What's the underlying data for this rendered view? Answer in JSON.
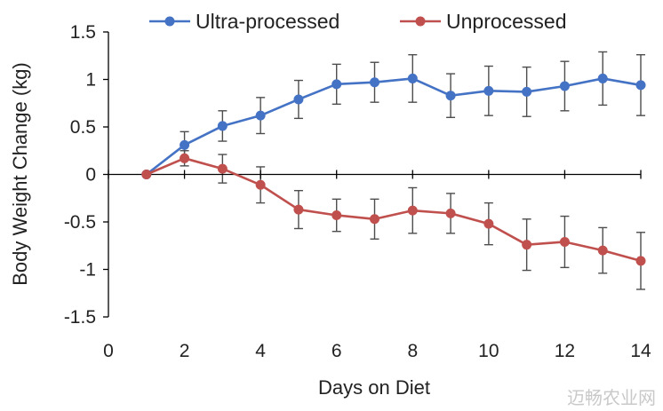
{
  "chart_data": {
    "type": "line",
    "title": "",
    "xlabel": "Days on Diet",
    "ylabel": "Body Weight Change (kg)",
    "xlim": [
      0,
      14
    ],
    "ylim": [
      -1.5,
      1.5
    ],
    "x_ticks": [
      0,
      2,
      4,
      6,
      8,
      10,
      12,
      14
    ],
    "y_ticks": [
      1.5,
      1,
      0.5,
      0,
      -0.5,
      -1,
      -1.5
    ],
    "x_tick_labels": [
      "0",
      "2",
      "4",
      "6",
      "8",
      "10",
      "12",
      "14"
    ],
    "y_tick_labels": [
      "1.5",
      "1",
      "0.5",
      "0",
      "-0.5",
      "-1",
      "-1.5"
    ],
    "legend_placement": "top",
    "grid": false,
    "x": [
      1,
      2,
      3,
      4,
      5,
      6,
      7,
      8,
      9,
      10,
      11,
      12,
      13,
      14
    ],
    "series": [
      {
        "name": "Ultra-processed",
        "color": "#4472C4",
        "values": [
          0,
          0.31,
          0.51,
          0.62,
          0.79,
          0.95,
          0.97,
          1.01,
          0.83,
          0.88,
          0.87,
          0.93,
          1.01,
          0.94
        ],
        "error": [
          0,
          0.14,
          0.16,
          0.19,
          0.2,
          0.21,
          0.21,
          0.25,
          0.23,
          0.26,
          0.26,
          0.26,
          0.28,
          0.32
        ]
      },
      {
        "name": "Unprocessed",
        "color": "#C0504D",
        "values": [
          0,
          0.17,
          0.06,
          -0.11,
          -0.37,
          -0.43,
          -0.47,
          -0.38,
          -0.41,
          -0.52,
          -0.74,
          -0.71,
          -0.8,
          -0.91
        ],
        "error": [
          0,
          0.08,
          0.15,
          0.19,
          0.2,
          0.17,
          0.21,
          0.24,
          0.21,
          0.22,
          0.27,
          0.27,
          0.24,
          0.3
        ]
      }
    ]
  },
  "watermark": "迈畅农业网"
}
